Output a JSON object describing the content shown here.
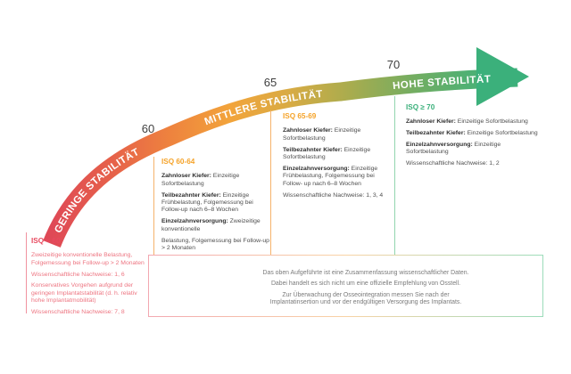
{
  "arrow": {
    "ticks": [
      "60",
      "65",
      "70"
    ],
    "labels": [
      "GERINGE STABILITÄT",
      "MITTLERE STABILITÄT",
      "HOHE STABILITÄT"
    ],
    "gradient": [
      "#df4956",
      "#e6614a",
      "#ee833e",
      "#f2a43b",
      "#d8ab44",
      "#a9ac4e",
      "#77ad60",
      "#4fb073",
      "#3bb07b"
    ],
    "arrowhead_color": "#3bb07b",
    "label_color": "#ffffff",
    "tick_color": "#3f3f3f"
  },
  "columns": [
    {
      "id": "isq-lt-60",
      "header": "ISQ < 60",
      "color": "#e8495f",
      "text_color": "#ed7480",
      "line_color": "#f0929f",
      "paragraphs": [
        {
          "text": "Zweizeitige konventionelle Belastung, Folgemessung bei Follow-up > 2 Monaten"
        },
        {
          "text": "Wissenschaftliche Nachweise: 1, 6"
        },
        {
          "text": "Konservatives Vorgehen aufgrund der geringen Implantatstabilität (d. h. relativ hohe Implantatmobilität)"
        },
        {
          "text": "Wissenschaftliche Nachweise: 7, 8"
        }
      ]
    },
    {
      "id": "isq-60-64",
      "header": "ISQ 60-64",
      "color": "#f5a329",
      "text_color": "#4e4e4e",
      "line_color": "#f5b36b",
      "paragraphs": [
        {
          "label": "Zahnloser Kiefer:",
          "text": "Einzeitige Sofortbelastung"
        },
        {
          "label": "Teilbezahnter Kiefer:",
          "text": "Einzeitige Frühbelastung, Folgemessung bei Follow-up nach 6–8 Wochen"
        },
        {
          "label": "Einzelzahnversorgung:",
          "text": "Zweizeitige konventionelle"
        },
        {
          "text": "Belastung, Folgemessung bei Follow-up > 2 Monaten"
        },
        {
          "text": "Wissenschaftliche Nachweise: 1, 5, 6"
        }
      ]
    },
    {
      "id": "isq-65-69",
      "header": "ISQ 65-69",
      "color": "#f5a329",
      "text_color": "#4e4e4e",
      "line_color": "#f5b36b",
      "paragraphs": [
        {
          "label": "Zahnloser Kiefer:",
          "text": "Einzeitige Sofortbelastung"
        },
        {
          "label": "Teilbezahnter Kiefer:",
          "text": "Einzeitige Sofortbelastung"
        },
        {
          "label": "Einzelzahnversorgung:",
          "text": "Einzeitige Frühbelastung, Folgemessung bei Follow- up nach 6–8 Wochen"
        },
        {
          "text": "Wissenschaftliche Nachweise: 1, 3, 4"
        }
      ]
    },
    {
      "id": "isq-ge-70",
      "header": "ISQ ≥ 70",
      "color": "#3bb07b",
      "text_color": "#4e4e4e",
      "line_color": "#92d5ae",
      "paragraphs": [
        {
          "label": "Zahnloser Kiefer:",
          "text": "Einzeitige Sofortbelastung"
        },
        {
          "label": "Teilbezahnter Kiefer:",
          "text": "Einzeitige Sofortbelastung"
        },
        {
          "label": "Einzelzahnversorgung:",
          "text": "Einzeitige Sofortbelastung"
        },
        {
          "text": "Wissenschaftliche Nachweise: 1, 2"
        }
      ]
    }
  ],
  "disclaimer": {
    "lines": [
      "Das oben Aufgeführte ist eine Zusammenfassung wissenschaftlicher Daten.",
      "Dabei handelt es sich nicht um eine offizielle Empfehlung von Osstell.",
      "Zur Überwachung der Osseointegration messen Sie nach der Implantatinsertion und vor der endgültigen Versorgung des Implantats."
    ],
    "text_color": "#7a7a7a",
    "border_gradient": [
      "#f3a8b1",
      "#f8d3a5",
      "#9cdcba"
    ]
  }
}
